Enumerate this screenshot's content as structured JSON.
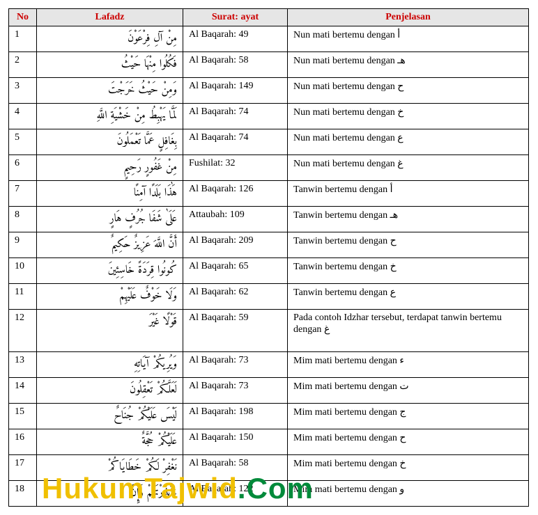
{
  "headers": {
    "no": "No",
    "lafadz": "Lafadz",
    "surat": "Surat: ayat",
    "penjelasan": "Penjelasan"
  },
  "rows": [
    {
      "no": "1",
      "lafadz": "مِنْ آلِ فِرْعَوْنَ",
      "surat": "Al Baqarah: 49",
      "penjelasan": "Nun mati bertemu dengan أ"
    },
    {
      "no": "2",
      "lafadz": "فَكُلُوا مِنْهَا حَيْثُ",
      "surat": "Al Baqarah: 58",
      "penjelasan": "Nun mati bertemu dengan هـ"
    },
    {
      "no": "3",
      "lafadz": "وَمِنْ حَيْثُ خَرَجْتَ",
      "surat": "Al Baqarah: 149",
      "penjelasan": "Nun mati bertemu dengan ح"
    },
    {
      "no": "4",
      "lafadz": "لَمَّا يَهْبِطُ مِنْ خَشْيَةِ اللَّهِ",
      "surat": "Al Baqarah: 74",
      "penjelasan": "Nun mati bertemu dengan خ"
    },
    {
      "no": "5",
      "lafadz": "بِغَافِلٍ عَمَّا تَعْمَلُونَ",
      "surat": "Al Baqarah: 74",
      "penjelasan": "Nun mati bertemu dengan ع"
    },
    {
      "no": "6",
      "lafadz": "مِنْ غَفُورٍ رَحِيمٍ",
      "surat": "Fushilat: 32",
      "penjelasan": "Nun mati bertemu dengan غ"
    },
    {
      "no": "7",
      "lafadz": "هَٰذَا بَلَدًا آمِنًا",
      "surat": "Al Baqarah: 126",
      "penjelasan": "Tanwin bertemu dengan أ"
    },
    {
      "no": "8",
      "lafadz": "عَلَىٰ شَفَا جُرُفٍ هَارٍ",
      "surat": "Attaubah: 109",
      "penjelasan": "Tanwin bertemu dengan هـ"
    },
    {
      "no": "9",
      "lafadz": "أَنَّ اللَّهَ عَزِيزٌ حَكِيمٌ",
      "surat": "Al Baqarah: 209",
      "penjelasan": "Tanwin bertemu dengan ح"
    },
    {
      "no": "10",
      "lafadz": "كُونُوا قِرَدَةً خَاسِئِينَ",
      "surat": "Al Baqarah: 65",
      "penjelasan": "Tanwin bertemu dengan خ"
    },
    {
      "no": "11",
      "lafadz": "وَلَا خَوْفٌ عَلَيْهِمْ",
      "surat": "Al Baqarah: 62",
      "penjelasan": "Tanwin bertemu dengan ع"
    },
    {
      "no": "12",
      "lafadz": "قَوْلًا غَيْرَ",
      "surat": "Al Baqarah: 59",
      "penjelasan": "Pada contoh Idzhar tersebut, terdapat tanwin bertemu dengan غ"
    },
    {
      "no": "13",
      "lafadz": "وَيُرِيكُمْ آيَاتِهِ",
      "surat": "Al Baqarah: 73",
      "penjelasan": "Mim mati bertemu dengan ء"
    },
    {
      "no": "14",
      "lafadz": "لَعَلَّكُمْ تَعْقِلُونَ",
      "surat": "Al Baqarah: 73",
      "penjelasan": "Mim mati bertemu dengan ت"
    },
    {
      "no": "15",
      "lafadz": "لَيْسَ عَلَيْكُمْ جُنَاحٌ",
      "surat": "Al Baqarah: 198",
      "penjelasan": "Mim mati bertemu dengan ج"
    },
    {
      "no": "16",
      "lafadz": "عَلَيْكُمْ حُجَّةٌ",
      "surat": "Al Baqarah: 150",
      "penjelasan": "Mim mati bertemu dengan ح"
    },
    {
      "no": "17",
      "lafadz": "نَغْفِرْ لَكُمْ خَطَايَاكُمْ",
      "surat": "Al Baqarah: 58",
      "penjelasan": "Mim mati bertemu dengan خ"
    },
    {
      "no": "18",
      "lafadz": "ءَأَنذَرْتَهُمْ وَإِنْ",
      "surat": "Al Baqarah: 122",
      "penjelasan": "Mim mati bertemu dengan و"
    }
  ],
  "watermark": {
    "a": "HukumTajwid",
    "b": ".Com"
  },
  "colors": {
    "header_text": "#cc0000",
    "header_bg": "#e6e6e6",
    "wm_a": "#f0c000",
    "wm_b": "#008a3a"
  }
}
